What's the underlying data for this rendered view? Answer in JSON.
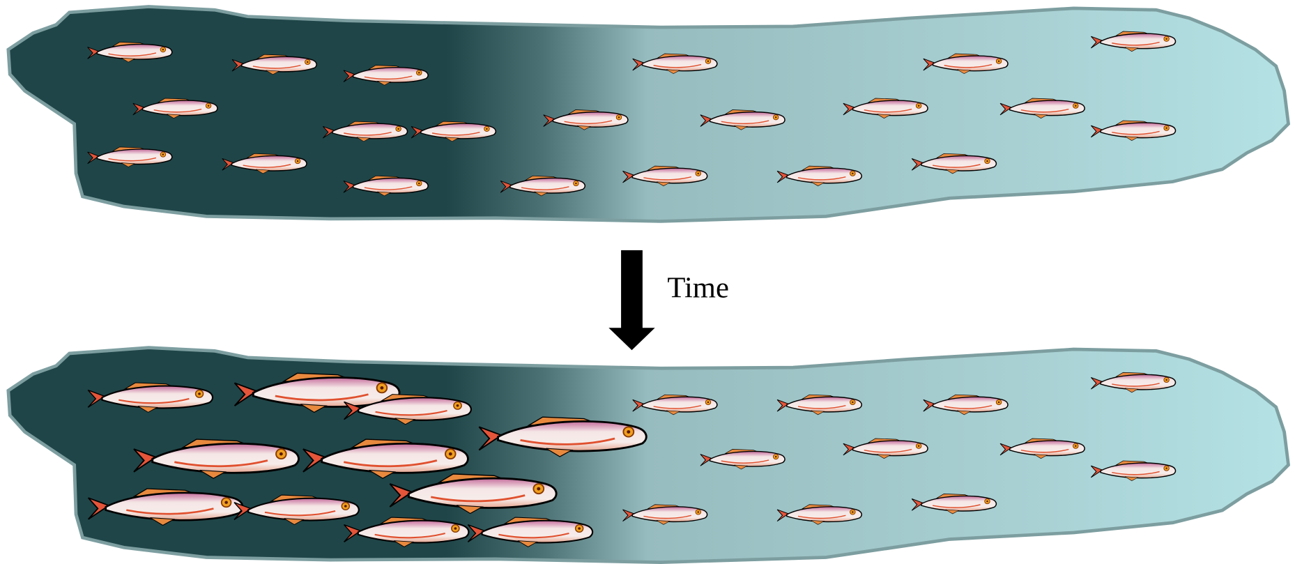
{
  "arrow": {
    "label": "Time"
  }
}
